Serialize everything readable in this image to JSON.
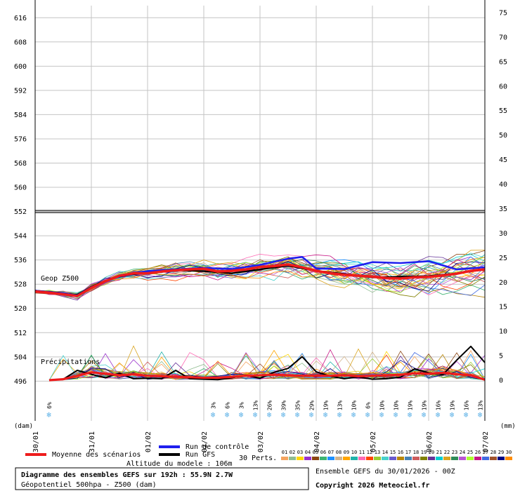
{
  "chart_data": {
    "type": "line",
    "x_dates": [
      "30/01",
      "31/01",
      "01/02",
      "02/02",
      "03/02",
      "04/02",
      "05/02",
      "06/02",
      "07/02"
    ],
    "left_axis": {
      "label": "(dam)",
      "ticks": [
        496,
        504,
        512,
        520,
        528,
        536,
        544,
        552,
        560,
        568,
        576,
        584,
        592,
        600,
        608,
        616
      ],
      "range": [
        494,
        620
      ]
    },
    "right_axis": {
      "label": "(mm)",
      "ticks": [
        0,
        5,
        10,
        15,
        20,
        25,
        30,
        35,
        40,
        45,
        50,
        55,
        60,
        65,
        70,
        75
      ],
      "range": [
        -1.43,
        76.43
      ]
    },
    "reference_line_dam": 552,
    "grid": true,
    "annotations": {
      "geop": "Geop Z500",
      "precip": "Précipitations"
    },
    "snow_probabilities": [
      {
        "day": 0.0,
        "label": "6%"
      },
      {
        "day": 2.92,
        "label": "3%"
      },
      {
        "day": 3.17,
        "label": "6%"
      },
      {
        "day": 3.42,
        "label": "3%"
      },
      {
        "day": 3.67,
        "label": "13%"
      },
      {
        "day": 3.92,
        "label": "26%"
      },
      {
        "day": 4.17,
        "label": "39%"
      },
      {
        "day": 4.42,
        "label": "35%"
      },
      {
        "day": 4.67,
        "label": "29%"
      },
      {
        "day": 4.92,
        "label": "19%"
      },
      {
        "day": 5.17,
        "label": "13%"
      },
      {
        "day": 5.42,
        "label": "10%"
      },
      {
        "day": 5.67,
        "label": "6%"
      },
      {
        "day": 5.92,
        "label": "10%"
      },
      {
        "day": 6.17,
        "label": "10%"
      },
      {
        "day": 6.42,
        "label": "19%"
      },
      {
        "day": 6.67,
        "label": "19%"
      },
      {
        "day": 6.92,
        "label": "16%"
      },
      {
        "day": 7.17,
        "label": "19%"
      },
      {
        "day": 7.42,
        "label": "16%"
      },
      {
        "day": 7.67,
        "label": "13%"
      }
    ],
    "geop_ensemble_mean": {
      "name": "Moyenne des scénarios",
      "color": "#ee1c1c",
      "x_days": [
        0,
        0.25,
        0.5,
        0.75,
        1,
        1.25,
        1.5,
        1.75,
        2,
        2.25,
        2.5,
        2.75,
        3,
        3.25,
        3.5,
        3.75,
        4,
        4.25,
        4.5,
        4.75,
        5,
        5.25,
        5.5,
        5.75,
        6,
        6.25,
        6.5,
        6.75,
        7,
        7.25,
        7.5,
        7.75,
        8
      ],
      "values": [
        525.6,
        525.2,
        524.7,
        524.1,
        526.8,
        529.0,
        530.8,
        531.6,
        531.6,
        532.2,
        532.6,
        532.9,
        533.1,
        532.2,
        532.4,
        532.9,
        533.7,
        534.0,
        534.5,
        533.6,
        532.4,
        531.6,
        531.1,
        530.8,
        530.5,
        530.0,
        529.9,
        530.3,
        530.4,
        530.9,
        531.5,
        532.4,
        532.9
      ]
    },
    "geop_control": {
      "name": "Run de contrôle",
      "color": "#1f1fee",
      "x_days": [
        0,
        0.5,
        0.75,
        1,
        1.5,
        2,
        2.5,
        3,
        3.5,
        4,
        4.5,
        4.75,
        5,
        5.5,
        6,
        6.5,
        7,
        7.5,
        8
      ],
      "values": [
        525.8,
        525.0,
        524.3,
        527.0,
        531.0,
        532.3,
        532.9,
        533.4,
        533.0,
        534.4,
        536.4,
        537.0,
        533.2,
        533.0,
        535.3,
        535.0,
        535.6,
        532.9,
        533.6
      ]
    },
    "geop_gfs": {
      "name": "Run GFS",
      "color": "#000000",
      "x_days": [
        0,
        0.5,
        0.75,
        1,
        1.5,
        2,
        2.5,
        3,
        3.5,
        4,
        4.5,
        5,
        5.5,
        6,
        6.5,
        7,
        7.5,
        8
      ],
      "values": [
        525.9,
        525.1,
        524.5,
        527.2,
        531.0,
        531.6,
        532.6,
        532.3,
        531.6,
        532.9,
        534.1,
        532.4,
        531.4,
        530.2,
        530.5,
        530.7,
        531.6,
        532.9
      ]
    },
    "precip_ensemble_mean": {
      "color": "#ee1c1c",
      "x_days": [
        0.25,
        0.5,
        0.75,
        1,
        1.25,
        1.5,
        1.75,
        2,
        2.25,
        2.5,
        2.75,
        3,
        3.25,
        3.5,
        3.75,
        4,
        4.25,
        4.5,
        4.75,
        5,
        5.25,
        5.5,
        5.75,
        6,
        6.25,
        6.5,
        6.75,
        7,
        7.25,
        7.5,
        7.75,
        8
      ],
      "values": [
        0.0,
        0.2,
        0.9,
        1.6,
        1.3,
        1.0,
        1.2,
        0.9,
        0.8,
        0.7,
        0.6,
        0.5,
        0.5,
        0.7,
        0.9,
        1.0,
        1.1,
        1.0,
        0.9,
        0.9,
        0.9,
        1.0,
        0.8,
        0.9,
        1.0,
        1.1,
        1.4,
        1.3,
        1.5,
        1.2,
        1.0,
        0.1
      ]
    },
    "precip_gfs": {
      "color": "#000000",
      "x_days": [
        0.25,
        0.5,
        0.75,
        1,
        1.25,
        1.5,
        1.75,
        2,
        2.25,
        2.5,
        2.75,
        3,
        3.25,
        3.5,
        3.75,
        4,
        4.25,
        4.5,
        4.75,
        5,
        5.25,
        5.5,
        5.75,
        6,
        6.25,
        6.5,
        6.75,
        7,
        7.25,
        7.5,
        7.75,
        8
      ],
      "values": [
        0.0,
        0.2,
        2.0,
        1.2,
        0.5,
        1.4,
        0.3,
        0.4,
        0.3,
        2.0,
        0.3,
        0.2,
        0.1,
        0.5,
        1.0,
        0.4,
        1.6,
        2.4,
        4.8,
        1.7,
        0.8,
        0.3,
        0.7,
        0.2,
        0.3,
        0.6,
        2.3,
        1.5,
        1.1,
        4.1,
        6.9,
        3.6
      ]
    },
    "legend": {
      "mean_label": "Moyenne des scénarios",
      "control_label": "Run de contrôle",
      "gfs_label": "Run GFS",
      "perts_label": "30 Perts.",
      "perturbations": [
        "01",
        "02",
        "03",
        "04",
        "05",
        "06",
        "07",
        "08",
        "09",
        "10",
        "11",
        "12",
        "13",
        "14",
        "15",
        "16",
        "17",
        "18",
        "19",
        "20",
        "21",
        "22",
        "23",
        "24",
        "25",
        "26",
        "27",
        "28",
        "29",
        "30"
      ],
      "pert_colors": [
        "#f4a460",
        "#8fbc8f",
        "#ffd700",
        "#9932cc",
        "#8b4513",
        "#3cb371",
        "#1e90ff",
        "#d2b48c",
        "#ffa500",
        "#20b2aa",
        "#ff69b4",
        "#ff4500",
        "#9acd32",
        "#48d1cc",
        "#6a5acd",
        "#b8860b",
        "#4682b4",
        "#cd5c5c",
        "#808000",
        "#663399",
        "#00ced1",
        "#daa520",
        "#2e8b57",
        "#ba55d3",
        "#adff2f",
        "#c71585",
        "#4169e1",
        "#a0522d",
        "#000080",
        "#ff8c00"
      ],
      "model_altitude": "Altitude du modele : 106m"
    },
    "info": {
      "title": "Diagramme des ensembles GEFS sur 192h : 55.9N 2.7W",
      "subtitle": "Géopotentiel 500hpa - Z500 (dam)",
      "run": "Ensemble GEFS du 30/01/2026 - 00Z",
      "copyright": "Copyright 2026 Meteociel.fr"
    }
  }
}
